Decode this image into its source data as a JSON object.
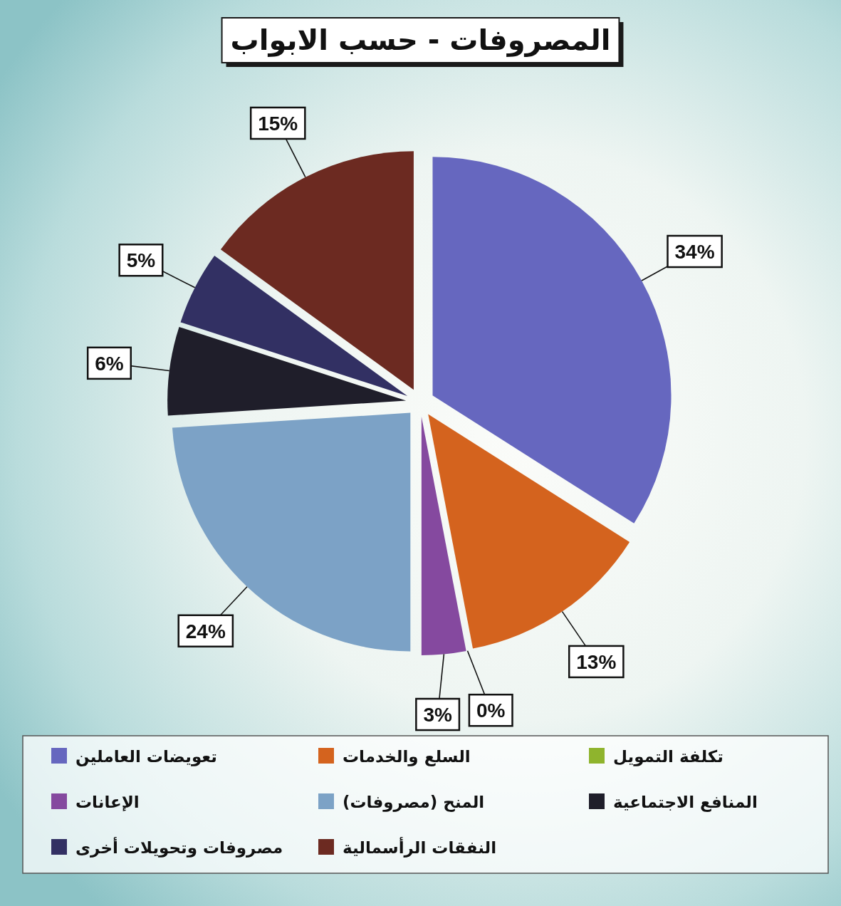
{
  "chart_data": {
    "type": "pie",
    "title": "المصروفات - حسب الابواب",
    "categories": [
      "تعويضات العاملين",
      "السلع والخدمات",
      "تكلفة التمويل",
      "الإعانات",
      "المنح (مصروفات)",
      "المنافع الاجتماعية",
      "مصروفات وتحويلات أخرى",
      "النفقات الرأسمالية"
    ],
    "values": [
      34,
      13,
      0,
      3,
      24,
      6,
      5,
      15
    ],
    "value_labels": [
      "34%",
      "13%",
      "0%",
      "3%",
      "24%",
      "6%",
      "5%",
      "15%"
    ],
    "colors": [
      "#6667bf",
      "#d4631e",
      "#8fb42d",
      "#85499f",
      "#7ca2c6",
      "#1f1e2a",
      "#323063",
      "#6c2a21"
    ],
    "legend": "bottom"
  }
}
